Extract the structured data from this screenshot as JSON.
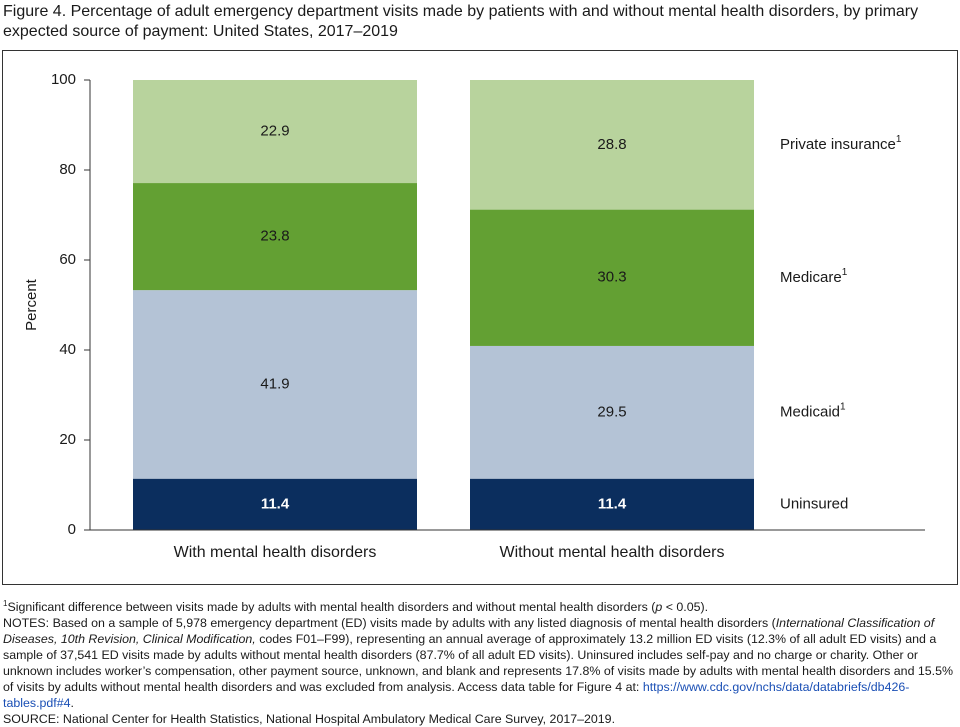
{
  "chart_data": {
    "type": "stacked_bar",
    "title": "Figure 4. Percentage of adult emergency department visits made by patients with and without mental health disorders, by primary expected source of payment: United States, 2017–2019",
    "ylabel": "Percent",
    "categories": [
      "With mental health disorders",
      "Without mental health disorders"
    ],
    "series": [
      {
        "name": "Uninsured",
        "color": "#0b2e5e",
        "label_color": "#ffffff",
        "values": [
          11.4,
          11.4
        ]
      },
      {
        "name": "Medicaid",
        "footnote_marker": "1",
        "color": "#b4c3d6",
        "label_color": "#1a1a1a",
        "values": [
          41.9,
          29.5
        ]
      },
      {
        "name": "Medicare",
        "footnote_marker": "1",
        "color": "#63a033",
        "label_color": "#1a1a1a",
        "values": [
          23.8,
          30.3
        ]
      },
      {
        "name": "Private insurance",
        "footnote_marker": "1",
        "color": "#b8d39d",
        "label_color": "#1a1a1a",
        "values": [
          22.9,
          28.8
        ]
      }
    ],
    "ylim": [
      0,
      100
    ],
    "yticks": [
      0,
      20,
      40,
      60,
      80,
      100
    ],
    "legend": "right",
    "footnote": {
      "marker": "1",
      "parts": [
        "Significant difference between visits made by adults with mental health disorders and without mental health disorders (",
        "p",
        " < 0.05)."
      ]
    },
    "notes": [
      "NOTES: Based on a sample of 5,978 emergency department (ED) visits made by adults with any listed diagnosis of mental health disorders (",
      "International Classification of Diseases, 10th Revision, Clinical Modification,",
      " codes F01–F99), representing an annual average of approximately 13.2 million ED visits (12.3% of all adult ED visits) and a sample of 37,541 ED visits made by adults without mental health disorders (87.7% of all adult ED visits). Uninsured includes self-pay and no charge or charity. Other or unknown includes worker’s compensation, other payment source, unknown, and blank and represents 17.8% of visits made by adults with mental health disorders and 15.5% of visits by adults without mental health disorders and was excluded from analysis. Access data table for Figure 4 at: ",
      "https://www.cdc.gov/nchs/data/databriefs/db426-tables.pdf#4",
      "."
    ],
    "source": "SOURCE: National Center for Health Statistics, National Hospital Ambulatory Medical Care Survey, 2017–2019."
  }
}
